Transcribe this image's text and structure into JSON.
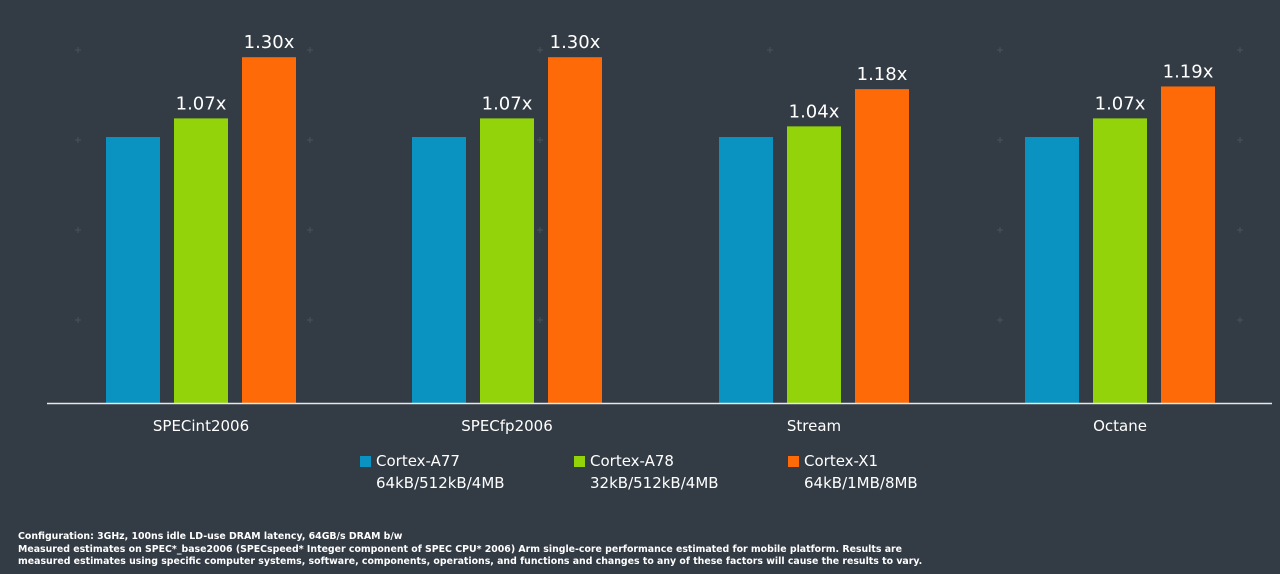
{
  "chart_data": {
    "type": "bar",
    "categories": [
      "SPECint2006",
      "SPECfp2006",
      "Stream",
      "Octane"
    ],
    "series": [
      {
        "name": "Cortex-A77",
        "detail": "64kB/512kB/4MB",
        "color": "#0a93c0",
        "values": [
          1.0,
          1.0,
          1.0,
          1.0
        ],
        "labels": [
          "",
          "",
          "",
          ""
        ]
      },
      {
        "name": "Cortex-A78",
        "detail": "32kB/512kB/4MB",
        "color": "#93d30a",
        "values": [
          1.07,
          1.07,
          1.04,
          1.07
        ],
        "labels": [
          "1.07x",
          "1.07x",
          "1.04x",
          "1.07x"
        ]
      },
      {
        "name": "Cortex-X1",
        "detail": "64kB/1MB/8MB",
        "color": "#fe6a07",
        "values": [
          1.3,
          1.3,
          1.18,
          1.19
        ],
        "labels": [
          "1.30x",
          "1.30x",
          "1.18x",
          "1.19x"
        ]
      }
    ],
    "title": "",
    "xlabel": "",
    "ylabel": "",
    "ylim": [
      0,
      1.45
    ],
    "grid": false,
    "legend_position": "bottom"
  },
  "colors": {
    "background": "#333b44",
    "axis": "#e6e8ea",
    "text": "#ffffff"
  },
  "footnote": {
    "line1": "Configuration: 3GHz, 100ns idle LD-use DRAM latency, 64GB/s DRAM b/w",
    "line2": "Measured estimates on SPEC*_base2006 (SPECspeed* Integer component of SPEC CPU* 2006) Arm single-core performance estimated for mobile platform. Results are",
    "line3": "measured estimates using specific computer systems, software, components, operations, and functions and changes to any of these factors will cause the results to vary."
  }
}
